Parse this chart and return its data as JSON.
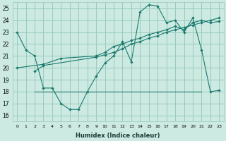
{
  "xlabel": "Humidex (Indice chaleur)",
  "bg_color": "#cce9e2",
  "grid_color": "#99ccbb",
  "line_color": "#1a7a6e",
  "xlim": [
    -0.5,
    23.5
  ],
  "ylim": [
    15.5,
    25.5
  ],
  "yticks": [
    16,
    17,
    18,
    19,
    20,
    21,
    22,
    23,
    24,
    25
  ],
  "xticks": [
    0,
    1,
    2,
    3,
    4,
    5,
    6,
    7,
    8,
    9,
    10,
    11,
    12,
    13,
    14,
    15,
    16,
    17,
    18,
    19,
    20,
    21,
    22,
    23
  ],
  "line1_x": [
    0,
    1,
    2,
    3,
    4,
    5,
    6,
    7,
    8,
    9,
    10,
    11,
    12,
    13,
    14,
    15,
    16,
    17,
    18,
    19,
    20,
    21,
    22,
    23
  ],
  "line1_y": [
    23.0,
    21.5,
    21.0,
    18.3,
    18.3,
    17.0,
    16.5,
    16.5,
    18.0,
    19.3,
    20.4,
    21.0,
    22.2,
    20.5,
    24.7,
    25.3,
    25.2,
    23.8,
    24.0,
    23.0,
    24.2,
    21.5,
    18.0,
    18.1
  ],
  "line2_x": [
    0,
    3,
    5,
    9,
    10,
    11,
    12,
    13,
    14,
    15,
    16,
    17,
    18,
    19,
    20,
    21,
    22,
    23
  ],
  "line2_y": [
    20.0,
    20.3,
    20.8,
    21.0,
    21.3,
    21.8,
    22.0,
    22.3,
    22.5,
    22.8,
    23.0,
    23.2,
    23.5,
    23.2,
    23.8,
    24.0,
    23.8,
    23.9
  ],
  "line3_x": [
    2,
    3,
    9,
    10,
    11,
    12,
    13,
    14,
    15,
    16,
    17,
    18,
    19,
    20,
    21,
    22,
    23
  ],
  "line3_y": [
    19.7,
    20.2,
    20.9,
    21.1,
    21.3,
    21.6,
    22.0,
    22.2,
    22.5,
    22.7,
    23.0,
    23.2,
    23.4,
    23.6,
    23.8,
    24.0,
    24.2
  ],
  "line4_x": [
    2,
    21
  ],
  "line4_y": [
    18.0,
    18.0
  ]
}
